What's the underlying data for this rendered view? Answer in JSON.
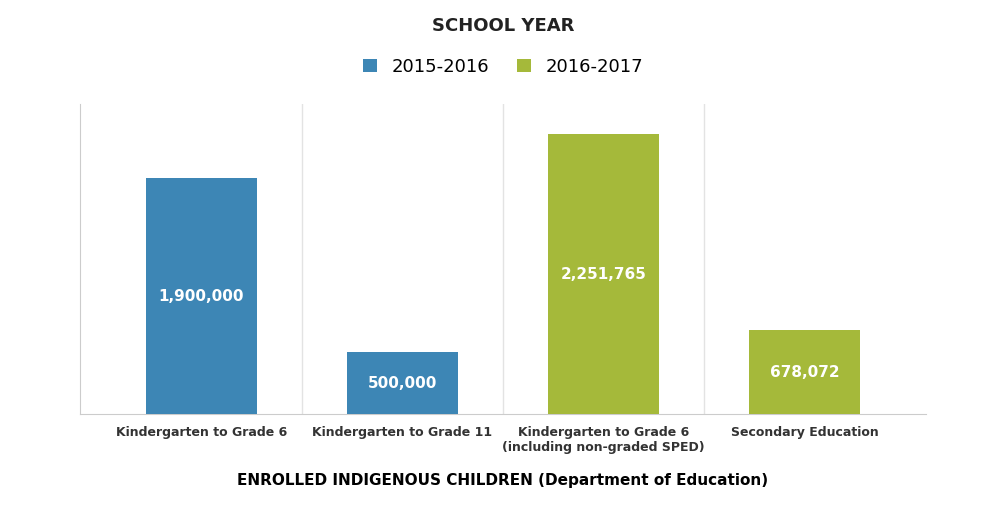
{
  "chart_data": {
    "type": "bar",
    "title": "SCHOOL YEAR",
    "x_label": "ENROLLED INDIGENOUS CHILDREN (Department of Education)",
    "categories": [
      "Kindergarten to Grade 6",
      "Kindergarten to Grade 11",
      "Kindergarten to Grade 6\n(including non-graded SPED)",
      "Secondary Education"
    ],
    "series": [
      {
        "name": "2015-2016",
        "color": "#3d86b5",
        "values": [
          1900000,
          500000,
          null,
          null
        ],
        "value_labels": [
          "1,900,000",
          "500,000",
          null,
          null
        ]
      },
      {
        "name": "2016-2017",
        "color": "#a5b93a",
        "values": [
          null,
          null,
          2251765,
          678072
        ],
        "value_labels": [
          null,
          null,
          "2,251,765",
          "678,072"
        ]
      }
    ],
    "ylim": [
      0,
      2500000
    ],
    "legend": "upper center",
    "data_labels": true,
    "grid": false,
    "tick_labels": "x"
  }
}
